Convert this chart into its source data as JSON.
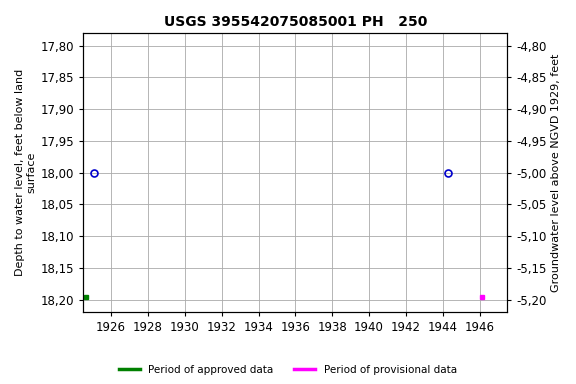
{
  "title": "USGS 395542075085001 PH   250",
  "ylabel_left": "Depth to water level, feet below land\nsurface",
  "ylabel_right": "Groundwater level above NGVD 1929, feet",
  "xlim": [
    1924.5,
    1947.5
  ],
  "ylim_left": [
    18.22,
    17.78
  ],
  "ylim_right": [
    -5.22,
    -4.78
  ],
  "xticks": [
    1926,
    1928,
    1930,
    1932,
    1934,
    1936,
    1938,
    1940,
    1942,
    1944,
    1946
  ],
  "yticks_left": [
    17.8,
    17.85,
    17.9,
    17.95,
    18.0,
    18.05,
    18.1,
    18.15,
    18.2
  ],
  "yticks_right": [
    -4.8,
    -4.85,
    -4.9,
    -4.95,
    -5.0,
    -5.05,
    -5.1,
    -5.15,
    -5.2
  ],
  "circle_points": [
    [
      1925.1,
      18.0
    ],
    [
      1944.3,
      18.0
    ]
  ],
  "green_square_x": 1924.65,
  "green_square_y": 18.195,
  "magenta_square_x": 1946.1,
  "magenta_square_y": 18.195,
  "circle_color": "#0000cc",
  "green_color": "#008000",
  "magenta_color": "#ff00ff",
  "bg_color": "#ffffff",
  "grid_color": "#aaaaaa",
  "legend_approved": "Period of approved data",
  "legend_provisional": "Period of provisional data",
  "title_fontsize": 10,
  "axis_fontsize": 8,
  "tick_fontsize": 8.5
}
